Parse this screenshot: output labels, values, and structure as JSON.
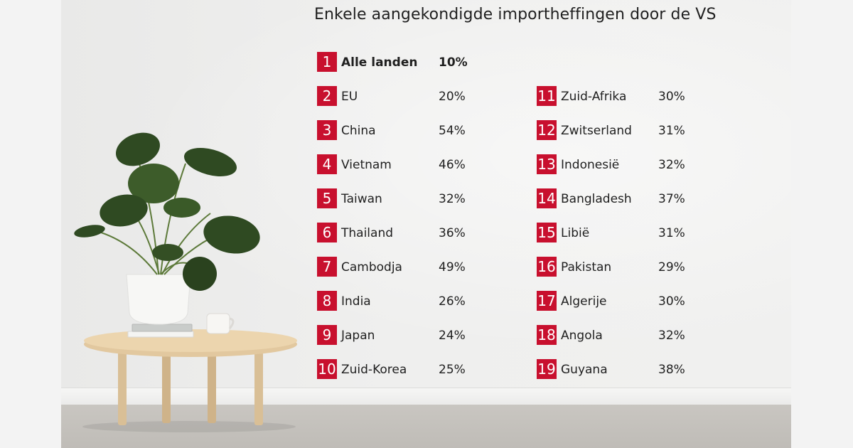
{
  "title": "Enkele aangekondigde importheffingen door de VS",
  "accent_color": "#c8102e",
  "left_column": [
    {
      "rank": "1",
      "country": "Alle landen",
      "rate": "10%",
      "bold": true
    },
    {
      "rank": "2",
      "country": "EU",
      "rate": "20%"
    },
    {
      "rank": "3",
      "country": "China",
      "rate": "54%"
    },
    {
      "rank": "4",
      "country": "Vietnam",
      "rate": "46%"
    },
    {
      "rank": "5",
      "country": "Taiwan",
      "rate": "32%"
    },
    {
      "rank": "6",
      "country": "Thailand",
      "rate": "36%"
    },
    {
      "rank": "7",
      "country": "Cambodja",
      "rate": "49%"
    },
    {
      "rank": "8",
      "country": "India",
      "rate": "26%"
    },
    {
      "rank": "9",
      "country": "Japan",
      "rate": "24%"
    },
    {
      "rank": "10",
      "country": "Zuid-Korea",
      "rate": "25%"
    }
  ],
  "right_column": [
    {
      "rank": "11",
      "country": "Zuid-Afrika",
      "rate": "30%"
    },
    {
      "rank": "12",
      "country": "Zwitserland",
      "rate": "31%"
    },
    {
      "rank": "13",
      "country": "Indonesië",
      "rate": "32%"
    },
    {
      "rank": "14",
      "country": "Bangladesh",
      "rate": "37%"
    },
    {
      "rank": "15",
      "country": "Libië",
      "rate": "31%"
    },
    {
      "rank": "16",
      "country": "Pakistan",
      "rate": "29%"
    },
    {
      "rank": "17",
      "country": "Algerije",
      "rate": "30%"
    },
    {
      "rank": "18",
      "country": "Angola",
      "rate": "32%"
    },
    {
      "rank": "19",
      "country": "Guyana",
      "rate": "38%"
    }
  ]
}
